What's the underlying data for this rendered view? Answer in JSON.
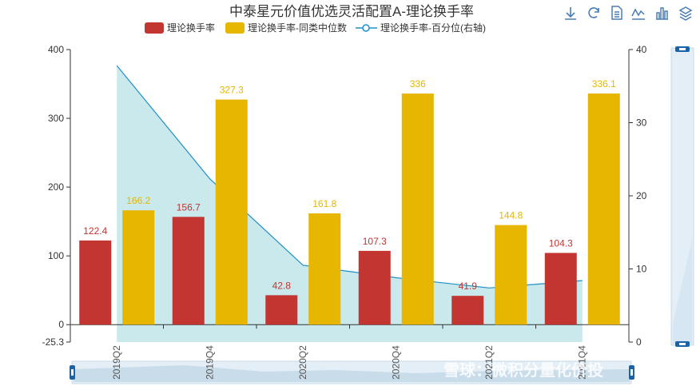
{
  "chart_data": {
    "type": "bar",
    "title": "中泰星元价值优选灵活配置A-理论换手率",
    "categories": [
      "2019Q2",
      "2019Q4",
      "2020Q2",
      "2020Q4",
      "2021Q2",
      "2021Q4"
    ],
    "x_tick_labels": [
      "2019Q2",
      "2019Q4",
      "2020Q2",
      "2020Q4",
      "2021Q2",
      "2021Q4"
    ],
    "series": [
      {
        "name": "理论换手率",
        "type": "bar",
        "axis": "left",
        "color": "#c23531",
        "values": [
          122.4,
          156.7,
          42.8,
          107.3,
          41.9,
          104.3
        ],
        "labels": [
          "122.4",
          "156.7",
          "42.8",
          "107.3",
          "41.9",
          "104.3"
        ]
      },
      {
        "name": "理论换手率-同类中位数",
        "type": "bar",
        "axis": "left",
        "color": "#e6b600",
        "values": [
          166.2,
          327.3,
          161.8,
          336,
          144.8,
          336.1
        ],
        "labels": [
          "166.2",
          "327.3",
          "161.8",
          "336",
          "144.8",
          "336.1"
        ]
      },
      {
        "name": "理论换手率-百分位(右轴)",
        "type": "area",
        "axis": "right",
        "color": "#1e90c8",
        "fill": "#b8e2e6",
        "x": [
          0,
          1,
          2,
          3,
          4,
          5
        ],
        "values": [
          37.8,
          22.3,
          10.5,
          8.8,
          7.4,
          8.4
        ]
      }
    ],
    "y_left": {
      "min": -25.3,
      "max": 400,
      "ticks": [
        "-25.3",
        "0",
        "100",
        "200",
        "300",
        "400"
      ],
      "tick_values": [
        -25.3,
        0,
        100,
        200,
        300,
        400
      ]
    },
    "y_right": {
      "min": 0,
      "max": 40,
      "ticks": [
        "0",
        "10",
        "20",
        "30",
        "40"
      ],
      "tick_values": [
        0,
        10,
        20,
        30,
        40
      ]
    },
    "legend_position": "top-center",
    "grid": false,
    "dataZoom": {
      "orientation": "horizontal-and-vertical",
      "range": [
        0,
        100
      ]
    }
  },
  "toolbox": {
    "icons": [
      "download-icon",
      "refresh-icon",
      "data-view-icon",
      "line-chart-icon",
      "bar-chart-icon",
      "stack-icon"
    ]
  },
  "watermark": {
    "text": "雪球：微积分量化价投"
  }
}
